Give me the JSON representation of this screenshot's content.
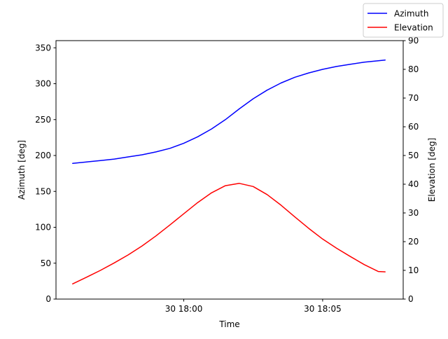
{
  "chart_data": {
    "type": "line",
    "xlabel": "Time",
    "ylabel_left": "Azimuth [deg]",
    "ylabel_right": "Elevation [deg]",
    "x_ticks": [
      "30 18:00",
      "30 18:05"
    ],
    "x_tick_minutes": [
      0,
      5
    ],
    "xlim_minutes": [
      -4.6,
      7.9
    ],
    "ylim_left": [
      0,
      360
    ],
    "ylim_right": [
      0,
      90
    ],
    "yticks_left": [
      0,
      50,
      100,
      150,
      200,
      250,
      300,
      350
    ],
    "yticks_right": [
      0,
      10,
      20,
      30,
      40,
      50,
      60,
      70,
      80,
      90
    ],
    "legend_position": "top-right",
    "grid": false,
    "x_minutes": [
      -4.0,
      -3.5,
      -3.0,
      -2.5,
      -2.0,
      -1.5,
      -1.0,
      -0.5,
      0.0,
      0.5,
      1.0,
      1.5,
      2.0,
      2.5,
      3.0,
      3.5,
      4.0,
      4.5,
      5.0,
      5.5,
      6.0,
      6.5,
      7.0,
      7.25
    ],
    "series": [
      {
        "name": "Azimuth",
        "axis": "left",
        "color": "#0000ff",
        "values": [
          189,
          191,
          193,
          195,
          198,
          201,
          205,
          210,
          217,
          226,
          237,
          250,
          265,
          279,
          291,
          301,
          309,
          315,
          320,
          324,
          327,
          330,
          332,
          333
        ]
      },
      {
        "name": "Elevation",
        "axis": "right",
        "color": "#ff0000",
        "values": [
          5.3,
          7.6,
          10.0,
          12.6,
          15.4,
          18.5,
          22.0,
          25.8,
          29.7,
          33.6,
          37.0,
          39.5,
          40.3,
          39.2,
          36.4,
          32.7,
          28.6,
          24.6,
          20.9,
          17.7,
          14.8,
          12.0,
          9.6,
          9.5
        ]
      }
    ]
  }
}
